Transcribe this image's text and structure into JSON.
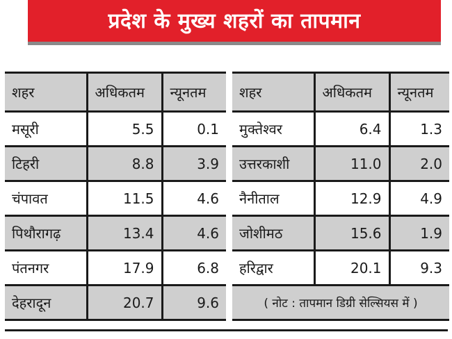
{
  "title": "प्रदेश के मुख्य शहरों का तापमान",
  "colors": {
    "banner": "#e2202a",
    "shade": "#cfcfcf"
  },
  "left_table": {
    "headers": [
      "शहर",
      "अधिकतम",
      "न्यूनतम"
    ],
    "rows": [
      {
        "city": "मसूरी",
        "max": "5.5",
        "min": "0.1"
      },
      {
        "city": "टिहरी",
        "max": "8.8",
        "min": "3.9"
      },
      {
        "city": "चंपावत",
        "max": "11.5",
        "min": "4.6"
      },
      {
        "city": "पिथौरागढ़",
        "max": "13.4",
        "min": "4.6"
      },
      {
        "city": "पंतनगर",
        "max": "17.9",
        "min": "6.8"
      },
      {
        "city": "देहरादून",
        "max": "20.7",
        "min": "9.6"
      }
    ]
  },
  "right_table": {
    "headers": [
      "शहर",
      "अधिकतम",
      "न्यूनतम"
    ],
    "rows": [
      {
        "city": "मुक्तेश्वर",
        "max": "6.4",
        "min": "1.3"
      },
      {
        "city": "उत्तरकाशी",
        "max": "11.0",
        "min": "2.0"
      },
      {
        "city": "नैनीताल",
        "max": "12.9",
        "min": "4.9"
      },
      {
        "city": "जोशीमठ",
        "max": "15.6",
        "min": "1.9"
      },
      {
        "city": "हरिद्वार",
        "max": "20.1",
        "min": "9.3"
      }
    ],
    "note": "( नोट : तापमान डिग्री सेल्सियस में )"
  }
}
